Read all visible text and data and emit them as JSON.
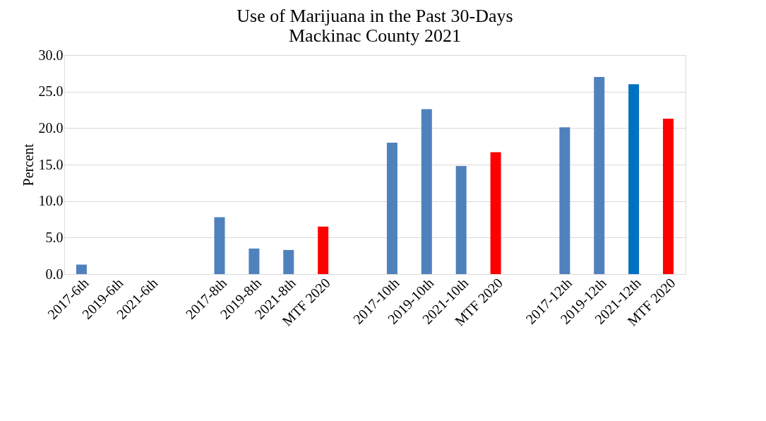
{
  "chart_data": {
    "type": "bar",
    "title": [
      "Use of Marijuana in the Past 30-Days",
      "Mackinac County 2021"
    ],
    "ylabel": "Percent",
    "categories": [
      "2017-6th",
      "2019-6th",
      "2021-6th",
      null,
      "2017-8th",
      "2019-8th",
      "2021-8th",
      "MTF 2020",
      null,
      "2017-10th",
      "2019-10th",
      "2021-10th",
      "MTF 2020",
      null,
      "2017-12th",
      "2019-12th",
      "2021-12th",
      "MTF 2020"
    ],
    "values": [
      1.3,
      null,
      null,
      null,
      7.8,
      3.5,
      3.3,
      6.5,
      null,
      18.0,
      22.6,
      14.8,
      16.7,
      null,
      20.1,
      27.0,
      26.0,
      21.3
    ],
    "colors": [
      "#4f81bd",
      "#4f81bd",
      "#4f81bd",
      "#4f81bd",
      "#4f81bd",
      "#4f81bd",
      "#4f81bd",
      "#ff0000",
      "#4f81bd",
      "#4f81bd",
      "#4f81bd",
      "#4f81bd",
      "#ff0000",
      "#4f81bd",
      "#4f81bd",
      "#4f81bd",
      "#0070c0",
      "#ff0000"
    ],
    "ylim": [
      0,
      30
    ],
    "yticks": [
      {
        "value": 0,
        "label": "0.0"
      },
      {
        "value": 5,
        "label": "5.0"
      },
      {
        "value": 10,
        "label": "10.0"
      },
      {
        "value": 15,
        "label": "15.0"
      },
      {
        "value": 20,
        "label": "20.0"
      },
      {
        "value": 25,
        "label": "25.0"
      },
      {
        "value": 30,
        "label": "30.0"
      }
    ],
    "grid": "y"
  }
}
